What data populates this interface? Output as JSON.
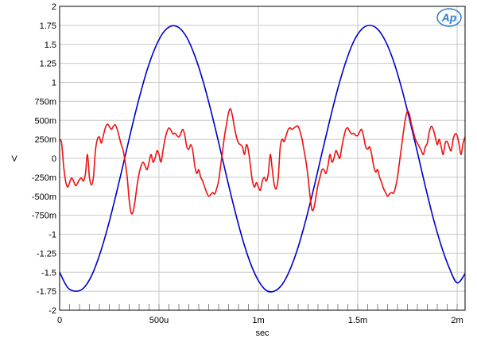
{
  "chart_data": {
    "type": "line",
    "title": "",
    "xlabel": "sec",
    "ylabel": "V",
    "xlim": [
      0,
      0.00204
    ],
    "ylim": [
      -2,
      2
    ],
    "grid": true,
    "x_ticks": [
      {
        "value": 0,
        "label": "0"
      },
      {
        "value": 0.0005,
        "label": "500u"
      },
      {
        "value": 0.001,
        "label": "1m"
      },
      {
        "value": 0.0015,
        "label": "1.5m"
      },
      {
        "value": 0.002,
        "label": "2m"
      }
    ],
    "y_ticks": [
      {
        "value": 2,
        "label": "2"
      },
      {
        "value": 1.75,
        "label": "1.75"
      },
      {
        "value": 1.5,
        "label": "1.5"
      },
      {
        "value": 1.25,
        "label": "1.25"
      },
      {
        "value": 1,
        "label": "1"
      },
      {
        "value": 0.75,
        "label": "750m"
      },
      {
        "value": 0.5,
        "label": "500m"
      },
      {
        "value": 0.25,
        "label": "250m"
      },
      {
        "value": 0,
        "label": "0"
      },
      {
        "value": -0.25,
        "label": "-250m"
      },
      {
        "value": -0.5,
        "label": "-500m"
      },
      {
        "value": -0.75,
        "label": "-750m"
      },
      {
        "value": -1,
        "label": "-1"
      },
      {
        "value": -1.25,
        "label": "-1.25"
      },
      {
        "value": -1.5,
        "label": "-1.5"
      },
      {
        "value": -1.75,
        "label": "-1.75"
      },
      {
        "value": -2,
        "label": "-2"
      }
    ],
    "logo": "Ap",
    "series": [
      {
        "color": "#0000cc",
        "points": [
          [
            0,
            -1.5
          ],
          [
            4e-05,
            -1.7
          ],
          [
            8e-05,
            -1.75
          ],
          [
            0.00012,
            -1.71
          ],
          [
            0.00016,
            -1.55
          ],
          [
            0.0002,
            -1.28
          ],
          [
            0.00024,
            -0.93
          ],
          [
            0.00028,
            -0.52
          ],
          [
            0.00032,
            -0.08
          ],
          [
            0.00036,
            0.37
          ],
          [
            0.0004,
            0.79
          ],
          [
            0.00044,
            1.16
          ],
          [
            0.00048,
            1.45
          ],
          [
            0.00052,
            1.65
          ],
          [
            0.00056,
            1.74
          ],
          [
            0.0006,
            1.72
          ],
          [
            0.00064,
            1.59
          ],
          [
            0.00068,
            1.35
          ],
          [
            0.00072,
            1.03
          ],
          [
            0.00076,
            0.64
          ],
          [
            0.0008,
            0.21
          ],
          [
            0.00084,
            -0.24
          ],
          [
            0.00088,
            -0.67
          ],
          [
            0.00092,
            -1.06
          ],
          [
            0.00096,
            -1.38
          ],
          [
            0.001,
            -1.61
          ],
          [
            0.00104,
            -1.74
          ],
          [
            0.00108,
            -1.75
          ],
          [
            0.00112,
            -1.66
          ],
          [
            0.00116,
            -1.46
          ],
          [
            0.0012,
            -1.17
          ],
          [
            0.00124,
            -0.8
          ],
          [
            0.00128,
            -0.38
          ],
          [
            0.00132,
            0.07
          ],
          [
            0.00136,
            0.51
          ],
          [
            0.0014,
            0.92
          ],
          [
            0.00144,
            1.27
          ],
          [
            0.00148,
            1.54
          ],
          [
            0.00152,
            1.7
          ],
          [
            0.00156,
            1.75
          ],
          [
            0.0016,
            1.7
          ],
          [
            0.00164,
            1.54
          ],
          [
            0.00168,
            1.28
          ],
          [
            0.00172,
            0.93
          ],
          [
            0.00176,
            0.52
          ],
          [
            0.0018,
            0.08
          ],
          [
            0.00184,
            -0.37
          ],
          [
            0.00188,
            -0.79
          ],
          [
            0.00192,
            -1.15
          ],
          [
            0.00196,
            -1.44
          ],
          [
            0.002,
            -1.64
          ],
          [
            0.00204,
            -1.52
          ]
        ]
      },
      {
        "color": "#ee1111",
        "points": [
          [
            0,
            0.25
          ],
          [
            1e-05,
            0.2
          ],
          [
            2e-05,
            -0.1
          ],
          [
            3e-05,
            -0.3
          ],
          [
            4e-05,
            -0.38
          ],
          [
            5e-05,
            -0.32
          ],
          [
            6e-05,
            -0.26
          ],
          [
            7e-05,
            -0.3
          ],
          [
            8e-05,
            -0.36
          ],
          [
            9e-05,
            -0.33
          ],
          [
            0.0001,
            -0.28
          ],
          [
            0.00011,
            -0.26
          ],
          [
            0.00012,
            -0.3
          ],
          [
            0.00013,
            -0.2
          ],
          [
            0.00014,
            0.05
          ],
          [
            0.00015,
            -0.25
          ],
          [
            0.00016,
            -0.35
          ],
          [
            0.00017,
            -0.25
          ],
          [
            0.00018,
            0.1
          ],
          [
            0.00019,
            0.25
          ],
          [
            0.0002,
            0.28
          ],
          [
            0.00021,
            0.2
          ],
          [
            0.00022,
            0.3
          ],
          [
            0.00023,
            0.4
          ],
          [
            0.00024,
            0.45
          ],
          [
            0.00025,
            0.42
          ],
          [
            0.00026,
            0.38
          ],
          [
            0.00027,
            0.42
          ],
          [
            0.00028,
            0.44
          ],
          [
            0.00029,
            0.38
          ],
          [
            0.0003,
            0.28
          ],
          [
            0.00031,
            0.18
          ],
          [
            0.00032,
            0.1
          ],
          [
            0.00033,
            -0.05
          ],
          [
            0.00034,
            -0.25
          ],
          [
            0.00035,
            -0.55
          ],
          [
            0.00036,
            -0.72
          ],
          [
            0.00037,
            -0.7
          ],
          [
            0.00038,
            -0.55
          ],
          [
            0.00039,
            -0.35
          ],
          [
            0.0004,
            -0.2
          ],
          [
            0.00041,
            -0.1
          ],
          [
            0.00042,
            -0.05
          ],
          [
            0.00043,
            -0.1
          ],
          [
            0.00044,
            -0.15
          ],
          [
            0.00045,
            -0.05
          ],
          [
            0.00046,
            0.05
          ],
          [
            0.00047,
            -0.05
          ],
          [
            0.00048,
            0.0
          ],
          [
            0.00049,
            0.1
          ],
          [
            0.0005,
            0.05
          ],
          [
            0.00051,
            -0.05
          ],
          [
            0.00052,
            0.1
          ],
          [
            0.00053,
            0.25
          ],
          [
            0.00054,
            0.35
          ],
          [
            0.00055,
            0.4
          ],
          [
            0.00056,
            0.37
          ],
          [
            0.00057,
            0.32
          ],
          [
            0.00058,
            0.33
          ],
          [
            0.00059,
            0.3
          ],
          [
            0.0006,
            0.28
          ],
          [
            0.00061,
            0.33
          ],
          [
            0.00062,
            0.38
          ],
          [
            0.00063,
            0.3
          ],
          [
            0.00064,
            0.15
          ],
          [
            0.00065,
            0.12
          ],
          [
            0.00066,
            0.18
          ],
          [
            0.00067,
            0.1
          ],
          [
            0.00068,
            -0.1
          ],
          [
            0.00069,
            -0.2
          ],
          [
            0.0007,
            -0.15
          ],
          [
            0.00071,
            -0.25
          ],
          [
            0.00072,
            -0.3
          ],
          [
            0.00073,
            -0.38
          ],
          [
            0.00074,
            -0.45
          ],
          [
            0.00075,
            -0.5
          ],
          [
            0.00076,
            -0.48
          ],
          [
            0.00077,
            -0.45
          ],
          [
            0.00078,
            -0.47
          ],
          [
            0.00079,
            -0.4
          ],
          [
            0.0008,
            -0.3
          ],
          [
            0.00081,
            -0.1
          ],
          [
            0.00082,
            0.1
          ],
          [
            0.00083,
            0.3
          ],
          [
            0.00084,
            0.45
          ],
          [
            0.00085,
            0.6
          ],
          [
            0.00086,
            0.65
          ],
          [
            0.00087,
            0.55
          ],
          [
            0.00088,
            0.4
          ],
          [
            0.00089,
            0.28
          ],
          [
            0.0009,
            0.2
          ],
          [
            0.00091,
            0.18
          ],
          [
            0.00092,
            0.15
          ],
          [
            0.00093,
            0.05
          ],
          [
            0.00094,
            0.18
          ],
          [
            0.00095,
            0.1
          ],
          [
            0.00096,
            -0.1
          ],
          [
            0.00097,
            -0.3
          ],
          [
            0.00098,
            -0.38
          ],
          [
            0.00099,
            -0.32
          ],
          [
            0.001,
            -0.38
          ],
          [
            0.00101,
            -0.42
          ],
          [
            0.00102,
            -0.3
          ],
          [
            0.00103,
            -0.25
          ],
          [
            0.00104,
            -0.3
          ],
          [
            0.00105,
            -0.2
          ],
          [
            0.00106,
            0.05
          ],
          [
            0.00107,
            -0.15
          ],
          [
            0.00108,
            -0.35
          ],
          [
            0.00109,
            -0.4
          ],
          [
            0.0011,
            -0.25
          ],
          [
            0.00111,
            0.15
          ],
          [
            0.00112,
            0.25
          ],
          [
            0.00113,
            0.22
          ],
          [
            0.00114,
            0.3
          ],
          [
            0.00115,
            0.38
          ],
          [
            0.00116,
            0.4
          ],
          [
            0.00117,
            0.38
          ],
          [
            0.00118,
            0.4
          ],
          [
            0.00119,
            0.42
          ],
          [
            0.0012,
            0.42
          ],
          [
            0.00121,
            0.35
          ],
          [
            0.00122,
            0.25
          ],
          [
            0.00123,
            0.1
          ],
          [
            0.00124,
            -0.05
          ],
          [
            0.00125,
            -0.25
          ],
          [
            0.00126,
            -0.5
          ],
          [
            0.00127,
            -0.68
          ],
          [
            0.00128,
            -0.65
          ],
          [
            0.00129,
            -0.5
          ],
          [
            0.0013,
            -0.35
          ],
          [
            0.00131,
            -0.25
          ],
          [
            0.00132,
            -0.15
          ],
          [
            0.00133,
            -0.15
          ],
          [
            0.00134,
            -0.2
          ],
          [
            0.00135,
            -0.1
          ],
          [
            0.00136,
            0.05
          ],
          [
            0.00137,
            -0.05
          ],
          [
            0.00138,
            0.0
          ],
          [
            0.00139,
            0.1
          ],
          [
            0.0014,
            0.05
          ],
          [
            0.00141,
            0.0
          ],
          [
            0.00142,
            0.15
          ],
          [
            0.00143,
            0.28
          ],
          [
            0.00144,
            0.38
          ],
          [
            0.00145,
            0.4
          ],
          [
            0.00146,
            0.35
          ],
          [
            0.00147,
            0.32
          ],
          [
            0.00148,
            0.33
          ],
          [
            0.00149,
            0.3
          ],
          [
            0.0015,
            0.3
          ],
          [
            0.00151,
            0.35
          ],
          [
            0.00152,
            0.38
          ],
          [
            0.00153,
            0.28
          ],
          [
            0.00154,
            0.15
          ],
          [
            0.00155,
            0.12
          ],
          [
            0.00156,
            0.15
          ],
          [
            0.00157,
            0.05
          ],
          [
            0.00158,
            -0.1
          ],
          [
            0.00159,
            -0.18
          ],
          [
            0.0016,
            -0.15
          ],
          [
            0.00161,
            -0.25
          ],
          [
            0.00162,
            -0.32
          ],
          [
            0.00163,
            -0.4
          ],
          [
            0.00164,
            -0.45
          ],
          [
            0.00165,
            -0.5
          ],
          [
            0.00166,
            -0.47
          ],
          [
            0.00167,
            -0.45
          ],
          [
            0.00168,
            -0.46
          ],
          [
            0.00169,
            -0.38
          ],
          [
            0.0017,
            -0.25
          ],
          [
            0.00171,
            -0.05
          ],
          [
            0.00172,
            0.15
          ],
          [
            0.00173,
            0.35
          ],
          [
            0.00174,
            0.52
          ],
          [
            0.00175,
            0.62
          ],
          [
            0.00176,
            0.58
          ],
          [
            0.00177,
            0.45
          ],
          [
            0.00178,
            0.35
          ],
          [
            0.00179,
            0.25
          ],
          [
            0.0018,
            0.2
          ],
          [
            0.00181,
            0.15
          ],
          [
            0.00182,
            0.1
          ],
          [
            0.00183,
            0.05
          ],
          [
            0.00184,
            0.15
          ],
          [
            0.00185,
            0.2
          ],
          [
            0.00186,
            0.35
          ],
          [
            0.00187,
            0.42
          ],
          [
            0.00188,
            0.38
          ],
          [
            0.00189,
            0.28
          ],
          [
            0.0019,
            0.18
          ],
          [
            0.00191,
            0.25
          ],
          [
            0.00192,
            0.15
          ],
          [
            0.00193,
            0.05
          ],
          [
            0.00194,
            0.2
          ],
          [
            0.00195,
            0.22
          ],
          [
            0.00196,
            0.15
          ],
          [
            0.00197,
            0.1
          ],
          [
            0.00198,
            0.25
          ],
          [
            0.00199,
            0.32
          ],
          [
            0.002,
            0.3
          ],
          [
            0.00201,
            0.18
          ],
          [
            0.00202,
            0.05
          ],
          [
            0.00203,
            0.2
          ],
          [
            0.00204,
            0.28
          ]
        ]
      }
    ]
  }
}
